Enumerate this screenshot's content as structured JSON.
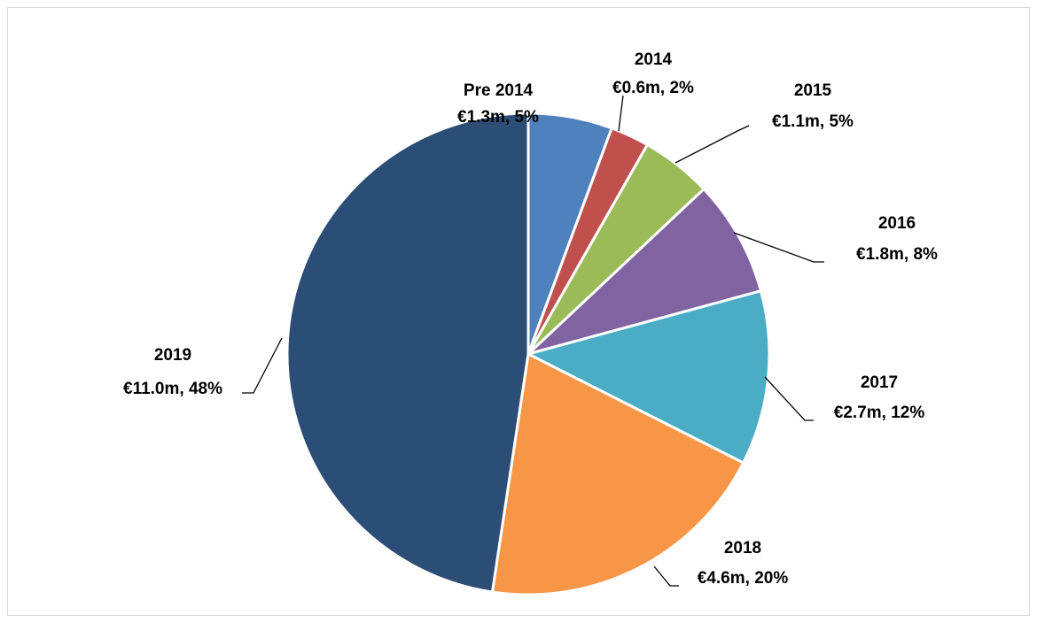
{
  "chart_data": {
    "type": "pie",
    "categories": [
      "Pre 2014",
      "2014",
      "2015",
      "2016",
      "2017",
      "2018",
      "2019"
    ],
    "values": [
      1.3,
      0.6,
      1.1,
      1.8,
      2.7,
      4.6,
      11.0
    ],
    "value_labels": [
      "€1.3m, 5%",
      "€0.6m, 2%",
      "€1.1m, 5%",
      "€1.8m, 8%",
      "€2.7m, 12%",
      "€4.6m, 20%",
      "€11.0m, 48%"
    ],
    "colors": [
      "#4f81bd",
      "#c0504d",
      "#9bbb59",
      "#8064a2",
      "#4bacc6",
      "#f79646",
      "#2c4d75"
    ]
  }
}
